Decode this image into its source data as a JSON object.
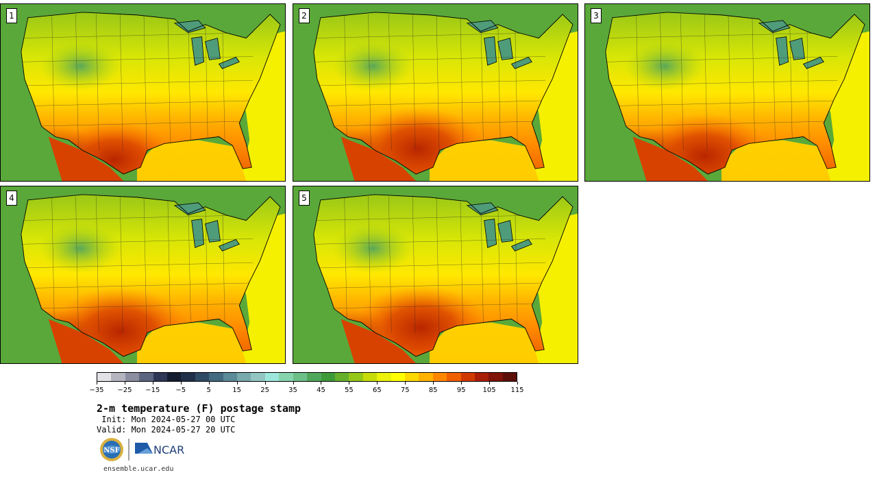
{
  "stamps": [
    {
      "label": "1",
      "hot_x": 0.4,
      "hot_y": 0.88,
      "hot_r": 0.22
    },
    {
      "label": "2",
      "hot_x": 0.44,
      "hot_y": 0.82,
      "hot_r": 0.24
    },
    {
      "label": "3",
      "hot_x": 0.42,
      "hot_y": 0.86,
      "hot_r": 0.24
    },
    {
      "label": "4",
      "hot_x": 0.42,
      "hot_y": 0.82,
      "hot_r": 0.25
    },
    {
      "label": "5",
      "hot_x": 0.45,
      "hot_y": 0.8,
      "hot_r": 0.24
    }
  ],
  "colorbar": {
    "colors": [
      "#e2e2e6",
      "#b5b5bf",
      "#8a8e9f",
      "#5c6580",
      "#2e3755",
      "#141c30",
      "#1f3048",
      "#2f4a64",
      "#426a80",
      "#5b8a98",
      "#78a9ad",
      "#93c6c3",
      "#9de6dc",
      "#85d4ae",
      "#6dbf88",
      "#4fa85a",
      "#3e9a39",
      "#66b12c",
      "#95c719",
      "#c5dc0a",
      "#ecf209",
      "#ffff00",
      "#ffd800",
      "#ffb300",
      "#ff8700",
      "#f05f00",
      "#d03a00",
      "#a81e07",
      "#801408",
      "#5c0f08"
    ],
    "ticks": [
      "−35",
      "−25",
      "−15",
      "−5",
      "5",
      "15",
      "25",
      "35",
      "45",
      "55",
      "65",
      "75",
      "85",
      "95",
      "105",
      "115"
    ]
  },
  "title": "2-m temperature (F) postage stamp",
  "init": " Init: Mon 2024-05-27 00 UTC",
  "valid": "Valid: Mon 2024-05-27 20 UTC",
  "logos": {
    "nsf": "NSF",
    "ncar": "NCAR"
  },
  "website": "ensemble.ucar.edu"
}
